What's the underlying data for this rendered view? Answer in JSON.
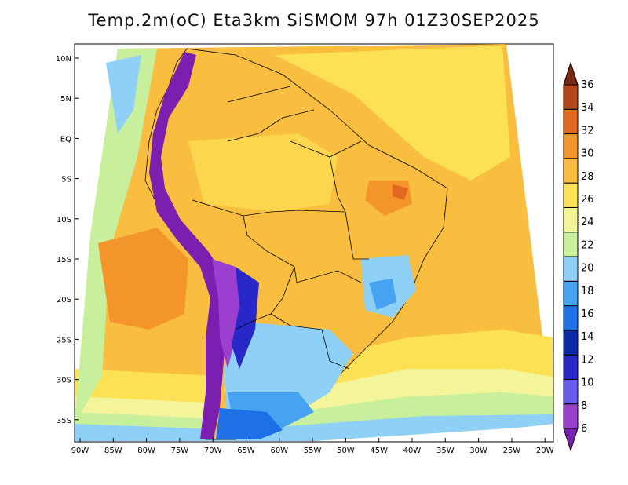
{
  "title": "Temp.2m(oC) Eta3km SiSMOM 97h 01Z30SEP2025",
  "map": {
    "lat_labels": [
      "10N",
      "5N",
      "EQ",
      "5S",
      "10S",
      "15S",
      "20S",
      "25S",
      "30S",
      "35S"
    ],
    "lon_labels": [
      "90W",
      "85W",
      "80W",
      "75W",
      "70W",
      "65W",
      "60W",
      "55W",
      "50W",
      "45W",
      "40W",
      "35W",
      "30W",
      "25W",
      "20W"
    ],
    "lon_range": [
      -90,
      -20
    ],
    "lat_range": [
      -38,
      11
    ]
  },
  "colorbar": {
    "unit": "oC",
    "levels": [
      6,
      8,
      10,
      12,
      14,
      16,
      18,
      20,
      22,
      24,
      26,
      28,
      30,
      32,
      34,
      36
    ],
    "labels": [
      "36",
      "34",
      "32",
      "30",
      "28",
      "26",
      "24",
      "22",
      "20",
      "18",
      "16",
      "14",
      "12",
      "10",
      "8",
      "6"
    ],
    "colors": [
      "#7a1fb0",
      "#9a3fd0",
      "#6a5af0",
      "#2828c8",
      "#0a2aa8",
      "#1f6fe6",
      "#46a3f2",
      "#8fd0f7",
      "#c8ef9c",
      "#f4f59a",
      "#fde155",
      "#f9bd3f",
      "#f4952c",
      "#e2681f",
      "#b4471a",
      "#7a2a14"
    ]
  }
}
